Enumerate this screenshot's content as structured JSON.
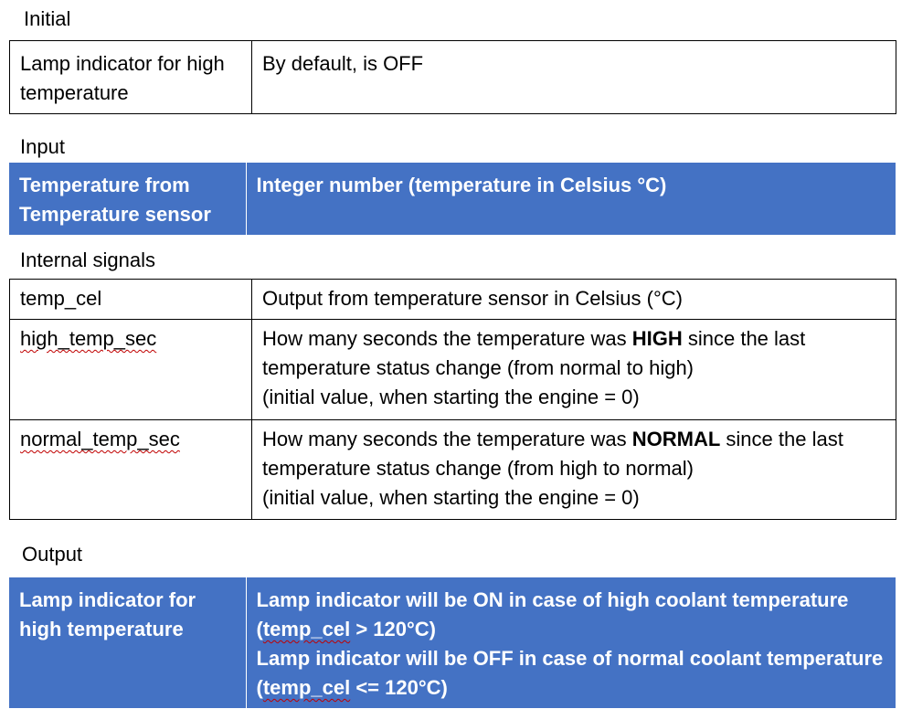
{
  "sections": {
    "initial": {
      "heading": "Initial",
      "rows": [
        {
          "name": "Lamp indicator for high temperature",
          "value": "By default, is OFF"
        }
      ]
    },
    "input": {
      "heading": "Input",
      "rows": [
        {
          "name": "Temperature from Temperature sensor",
          "value": "Integer number (temperature in Celsius °C)"
        }
      ]
    },
    "internal": {
      "heading": "Internal signals",
      "rows": [
        {
          "name": "temp_cel",
          "value": "Output from temperature sensor in Celsius (°C)"
        },
        {
          "name": "high_temp_sec",
          "value_pre": "How many seconds the temperature was ",
          "value_bold": "HIGH",
          "value_post": " since the last temperature status change (from normal to high)",
          "value_extra": "(initial value, when starting the engine = 0)"
        },
        {
          "name": "normal_temp_sec",
          "value_pre": "How many seconds the temperature was ",
          "value_bold": "NORMAL",
          "value_post": " since the last temperature status change (from high to normal)",
          "value_extra": "(initial value, when starting the engine = 0)"
        }
      ]
    },
    "output": {
      "heading": "Output",
      "rows": [
        {
          "name": "Lamp indicator for high temperature",
          "line1_pre": "Lamp indicator will be ON in case of high coolant temperature (",
          "line1_var": "temp_cel",
          "line1_post": " > 120°C)",
          "line2_pre": "Lamp indicator will be OFF in case of normal coolant temperature (",
          "line2_var": "temp_cel",
          "line2_post": " <= 120°C)"
        }
      ]
    }
  },
  "colors": {
    "header_fill": "#4472c4",
    "spell_underline": "#c00000"
  }
}
